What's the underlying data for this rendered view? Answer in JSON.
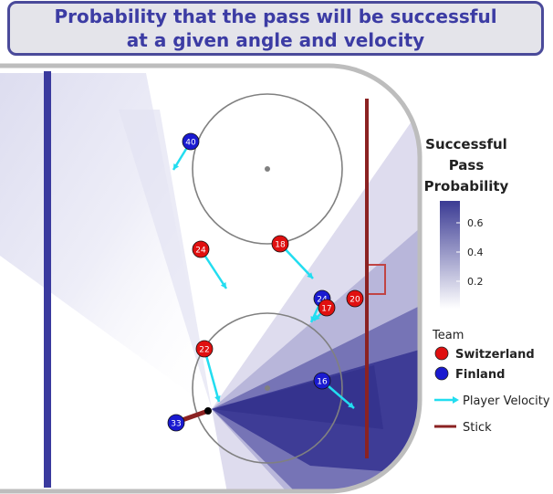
{
  "title": {
    "line1": "Probability that the pass will be successful",
    "line2": "at a given angle and velocity"
  },
  "colors": {
    "switzerland": "#e01010",
    "finland": "#1a1ad0",
    "velocity_arrow": "#22ddf0",
    "stick": "#8b2222",
    "prob_high": "#3b3b94",
    "blue_line": "#3a3a9e",
    "goal_line": "#8b2222"
  },
  "legend": {
    "prob_title": [
      "Successful",
      "Pass",
      "Probability"
    ],
    "prob_ticks": [
      "0.6",
      "0.4",
      "0.2"
    ],
    "team_title": "Team",
    "teams": [
      {
        "name": "Switzerland",
        "color": "#e01010"
      },
      {
        "name": "Finland",
        "color": "#1a1ad0"
      }
    ],
    "velocity_label": "Player Velocity",
    "stick_label": "Stick"
  },
  "chart_data": {
    "type": "scatter",
    "title": "Probability that the pass will be successful at a given angle and velocity",
    "colorbar": {
      "title": "Successful Pass Probability",
      "range": [
        0,
        0.7
      ],
      "ticks": [
        0.2,
        0.4,
        0.6
      ]
    },
    "players": [
      {
        "number": "40",
        "team": "Finland"
      },
      {
        "number": "24",
        "team": "Switzerland"
      },
      {
        "number": "18",
        "team": "Switzerland"
      },
      {
        "number": "24",
        "team": "Finland"
      },
      {
        "number": "17",
        "team": "Switzerland"
      },
      {
        "number": "20",
        "team": "Switzerland"
      },
      {
        "number": "22",
        "team": "Switzerland"
      },
      {
        "number": "16",
        "team": "Finland"
      },
      {
        "number": "33",
        "team": "Finland"
      }
    ],
    "passer": "33"
  }
}
